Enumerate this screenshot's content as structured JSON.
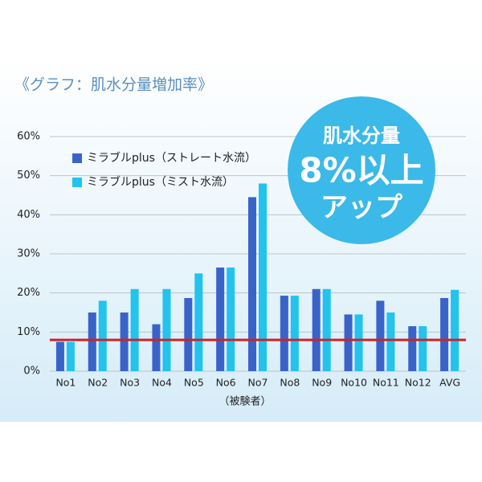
{
  "chart_data": {
    "type": "bar",
    "title": "《グラフ：肌水分量増加率》",
    "x_label": "（被験者）",
    "categories": [
      "No1",
      "No2",
      "No3",
      "No4",
      "No5",
      "No6",
      "No7",
      "No8",
      "No9",
      "No10",
      "No11",
      "No12",
      "AVG"
    ],
    "series": [
      {
        "name": "ミラブルplus（ストレート水流）",
        "color": "#3a63c9",
        "values": [
          7.5,
          15,
          15,
          12,
          18.7,
          26.5,
          44.5,
          19.3,
          21,
          14.5,
          18,
          11.5,
          18.7
        ]
      },
      {
        "name": "ミラブルplus（ミスト水流）",
        "color": "#22c3ee",
        "values": [
          7.5,
          18,
          21,
          21,
          25,
          26.5,
          48,
          19.3,
          21,
          14.5,
          15,
          11.5,
          20.8
        ]
      }
    ],
    "ylim": [
      0,
      60
    ],
    "yticks": [
      {
        "value": 0,
        "label": "0%"
      },
      {
        "value": 10,
        "label": "10%"
      },
      {
        "value": 20,
        "label": "20%"
      },
      {
        "value": 30,
        "label": "30%"
      },
      {
        "value": 40,
        "label": "40%"
      },
      {
        "value": 50,
        "label": "50%"
      },
      {
        "value": 60,
        "label": "60%"
      }
    ],
    "grid": true,
    "legend": "top-left",
    "reference_line": {
      "value": 8,
      "color": "#d0202a"
    },
    "badge": {
      "lines": [
        "肌水分量",
        "8%以上",
        "アップ"
      ],
      "color": "#3bb9e8"
    }
  }
}
